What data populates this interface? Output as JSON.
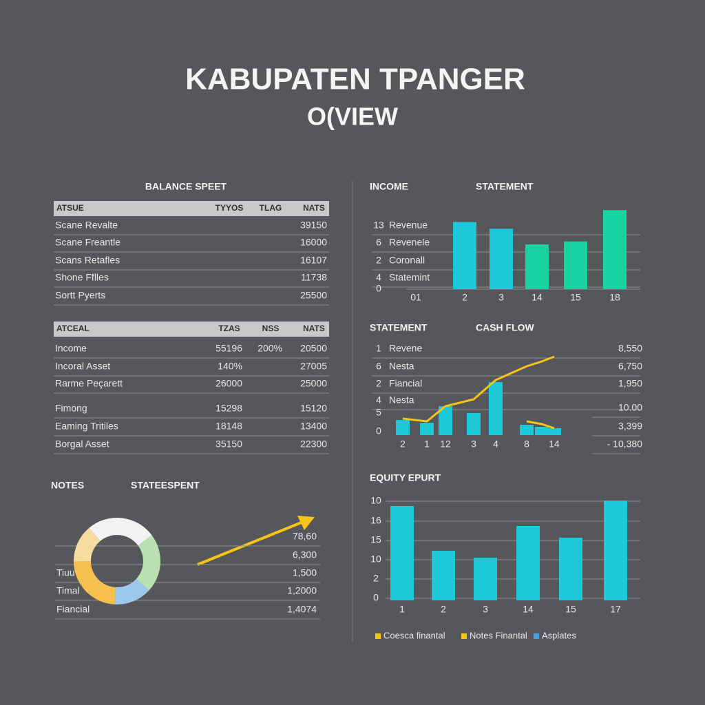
{
  "header": {
    "title": "KABUPATEN TPANGER",
    "subtitle": "O(VIEW"
  },
  "balance_sheet": {
    "title": "BALANCE SPEET",
    "table1": {
      "columns": [
        "ATSUE",
        "TYYOS",
        "TLAG",
        "NATS"
      ],
      "rows": [
        {
          "label": "Scane Revalte",
          "nats": "39150"
        },
        {
          "label": "Scane Freantle",
          "nats": "16000"
        },
        {
          "label": "Scans Retafles",
          "nats": "16107"
        },
        {
          "label": "Shone Fflles",
          "nats": "11738"
        },
        {
          "label": "Sortt Pyerts",
          "nats": "25500"
        }
      ]
    },
    "table2": {
      "columns": [
        "ATCEAL",
        "TZAS",
        "NSS",
        "NATS"
      ],
      "rows": [
        {
          "label": "Income",
          "tzas": "55196",
          "nss": "200%",
          "nats": "20500"
        },
        {
          "label": "Incoral Asset",
          "tzas": "140%",
          "nats": "27005"
        },
        {
          "label": "Rarme Peçarett",
          "tzas": "26000",
          "nats": "25000"
        },
        {
          "label": "Fimong",
          "tzas": "15298",
          "nats": "15120"
        },
        {
          "label": "Eaming Tritiles",
          "tzas": "18148",
          "nats": "13400"
        },
        {
          "label": "Borgal Asset",
          "tzas": "35150",
          "nats": "22300"
        }
      ]
    }
  },
  "notes": {
    "title": "NOTES",
    "subtitle": "STATEESPENT",
    "rows": [
      {
        "value": "78,60"
      },
      {
        "value": "6,300"
      },
      {
        "label": "Tiuu",
        "value": "1,500"
      },
      {
        "label": "Timal",
        "value": "1,2000"
      },
      {
        "label": "Fiancial",
        "value": "1,4074"
      }
    ]
  },
  "chart_data": [
    {
      "type": "bar",
      "title": "INCOME",
      "subtitle": "STATEMENT",
      "row_labels": [
        {
          "number": "13",
          "label": "Revenue"
        },
        {
          "number": "6",
          "label": "Revenele"
        },
        {
          "number": "2",
          "label": "Coronall"
        },
        {
          "number": "4",
          "label": "Statemint"
        },
        {
          "number": "0"
        }
      ],
      "categories": [
        "01",
        "2",
        "3",
        "14",
        "15",
        "18"
      ],
      "series": [
        {
          "color": "#1ec8d8",
          "values": [
            null,
            9,
            8.1,
            null,
            null,
            null
          ]
        },
        {
          "color": "#19d3a2",
          "values": [
            null,
            null,
            null,
            6,
            6.4,
            10.6
          ]
        }
      ],
      "ylim": [
        0,
        12
      ]
    },
    {
      "type": "combo",
      "title": "STATEMENT",
      "subtitle": "CASH FLOW",
      "row_labels": [
        {
          "number": "1",
          "label": "Revene"
        },
        {
          "number": "6",
          "label": "Nesta"
        },
        {
          "number": "2",
          "label": "Fiancial"
        },
        {
          "number": "4",
          "label": "Nesta"
        },
        {
          "number": "5"
        },
        {
          "number": "0"
        }
      ],
      "right_labels": [
        "8,550",
        "6,750",
        "1,950",
        "10.00",
        "3,399",
        "- 10,380"
      ],
      "categories": [
        "2",
        "1",
        "12",
        "3",
        "4",
        "8",
        null,
        "14"
      ],
      "values": [
        22,
        18,
        42,
        32,
        77,
        15,
        12,
        10
      ],
      "color": "#1ec8d8",
      "lines": [
        {
          "color": "#f5c518",
          "values": [
            24,
            20,
            42,
            52,
            80,
            100,
            107,
            114
          ]
        },
        {
          "color": "#f5c518",
          "values": [
            null,
            null,
            null,
            null,
            null,
            20,
            16,
            10
          ]
        }
      ],
      "ylim": [
        0,
        120
      ]
    },
    {
      "type": "bar",
      "title": "EQUITY EPURT",
      "axis_labels": [
        "10",
        "16",
        "15",
        "10",
        "2",
        "0"
      ],
      "categories": [
        "1",
        "2",
        "3",
        "14",
        "15",
        "17"
      ],
      "values": [
        137,
        72,
        62,
        108,
        91,
        145
      ],
      "color": "#1ec8d8",
      "ylim": [
        0,
        150
      ],
      "legend": [
        {
          "name": "Coesca finantal",
          "color": "#f5c518"
        },
        {
          "name": "Notes Finantal",
          "color": "#f5c518"
        },
        {
          "name": "Asplates",
          "color": "#4aa0e0"
        }
      ]
    },
    {
      "type": "pie",
      "values": [
        26,
        22,
        14,
        24,
        14
      ],
      "colors": [
        "#f2f2f2",
        "#b9e0b0",
        "#9cc8ec",
        "#f6c050",
        "#f7dca0"
      ]
    }
  ]
}
